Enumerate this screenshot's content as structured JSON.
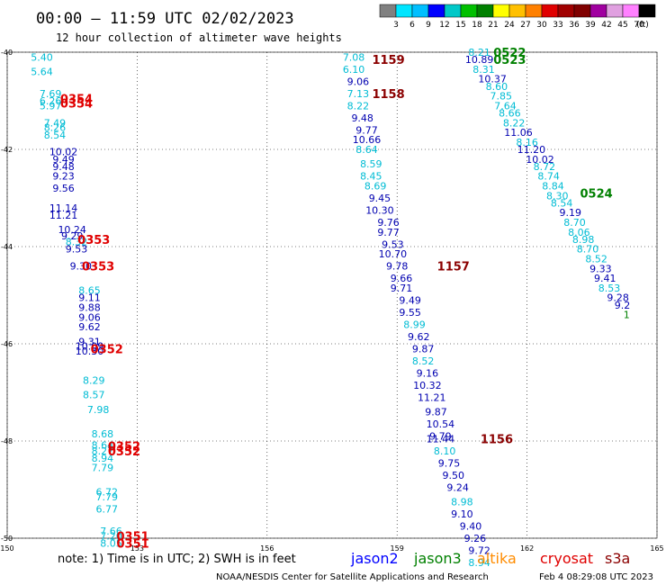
{
  "header": {
    "title": "00:00 – 11:59 UTC 02/02/2023",
    "subtitle": "12 hour collection of altimeter wave heights"
  },
  "colorbar": {
    "colors": [
      "#808080",
      "#00e5ff",
      "#00bfff",
      "#0000ff",
      "#00c8c8",
      "#00c000",
      "#008000",
      "#ffff00",
      "#ffc000",
      "#ff8000",
      "#e00000",
      "#a00000",
      "#800000",
      "#a000a0",
      "#e0a0e0",
      "#ff80ff",
      "#000000"
    ],
    "labels": [
      "3",
      "6",
      "9",
      "12",
      "15",
      "18",
      "21",
      "24",
      "27",
      "30",
      "33",
      "36",
      "39",
      "42",
      "45",
      "70"
    ],
    "unit": "(ft)"
  },
  "chart_data": {
    "type": "scatter",
    "title": "00:00 – 11:59 UTC 02/02/2023",
    "subtitle": "12 hour collection of altimeter wave heights",
    "xlim": [
      150,
      165
    ],
    "ylim": [
      -50,
      -40
    ],
    "x_ticks": [
      "150",
      "153",
      "156",
      "159",
      "162",
      "165"
    ],
    "y_ticks": [
      "-40",
      "-42",
      "-44",
      "-46",
      "-48",
      "-50"
    ],
    "grid": true,
    "colors": {
      "light": "#00bcd4",
      "dark": "#0000b0",
      "jason2": "#0000ff",
      "jason3": "#008000",
      "altika": "#ff8c00",
      "cryosat": "#e00000",
      "s3a": "#8b0000"
    },
    "tracks": [
      {
        "satellite": "cryosat",
        "points": [
          {
            "x": 150.8,
            "y": -40.1,
            "v": "5.40",
            "c": "light"
          },
          {
            "x": 150.8,
            "y": -40.4,
            "v": "5.64",
            "c": "light"
          },
          {
            "x": 151.0,
            "y": -40.85,
            "v": "7.69",
            "c": "light"
          },
          {
            "x": 151.0,
            "y": -41.0,
            "v": "6.26",
            "c": "light"
          },
          {
            "x": 151.0,
            "y": -41.1,
            "v": "5.97",
            "c": "light"
          },
          {
            "x": 151.1,
            "y": -41.45,
            "v": "7.49",
            "c": "light"
          },
          {
            "x": 151.1,
            "y": -41.55,
            "v": "8.26",
            "c": "light"
          },
          {
            "x": 151.1,
            "y": -41.7,
            "v": "8.54",
            "c": "light"
          },
          {
            "x": 151.3,
            "y": -42.05,
            "v": "10.02",
            "c": "dark"
          },
          {
            "x": 151.3,
            "y": -42.2,
            "v": "9.49",
            "c": "dark"
          },
          {
            "x": 151.3,
            "y": -42.35,
            "v": "9.48",
            "c": "dark"
          },
          {
            "x": 151.3,
            "y": -42.55,
            "v": "9.23",
            "c": "dark"
          },
          {
            "x": 151.3,
            "y": -42.8,
            "v": "9.56",
            "c": "dark"
          },
          {
            "x": 151.3,
            "y": -43.2,
            "v": "11.14",
            "c": "dark"
          },
          {
            "x": 151.3,
            "y": -43.35,
            "v": "11.21",
            "c": "dark"
          },
          {
            "x": 151.5,
            "y": -43.65,
            "v": "10.24",
            "c": "dark"
          },
          {
            "x": 151.5,
            "y": -43.78,
            "v": "9.29",
            "c": "dark"
          },
          {
            "x": 151.6,
            "y": -43.9,
            "v": "8.32",
            "c": "light"
          },
          {
            "x": 151.6,
            "y": -44.05,
            "v": "9.53",
            "c": "dark"
          },
          {
            "x": 151.7,
            "y": -44.4,
            "v": "9.30",
            "c": "dark"
          },
          {
            "x": 151.9,
            "y": -44.9,
            "v": "8.65",
            "c": "light"
          },
          {
            "x": 151.9,
            "y": -45.05,
            "v": "9.11",
            "c": "dark"
          },
          {
            "x": 151.9,
            "y": -45.25,
            "v": "9.88",
            "c": "dark"
          },
          {
            "x": 151.9,
            "y": -45.45,
            "v": "9.06",
            "c": "dark"
          },
          {
            "x": 151.9,
            "y": -45.65,
            "v": "9.62",
            "c": "dark"
          },
          {
            "x": 151.9,
            "y": -45.95,
            "v": "9.31",
            "c": "dark"
          },
          {
            "x": 151.9,
            "y": -46.05,
            "v": "10.09",
            "c": "dark"
          },
          {
            "x": 151.9,
            "y": -46.15,
            "v": "10.30",
            "c": "dark"
          },
          {
            "x": 152.0,
            "y": -46.75,
            "v": "8.29",
            "c": "light"
          },
          {
            "x": 152.0,
            "y": -47.05,
            "v": "8.57",
            "c": "light"
          },
          {
            "x": 152.1,
            "y": -47.35,
            "v": "7.98",
            "c": "light"
          },
          {
            "x": 152.2,
            "y": -47.85,
            "v": "8.68",
            "c": "light"
          },
          {
            "x": 152.2,
            "y": -48.08,
            "v": "8.64",
            "c": "light"
          },
          {
            "x": 152.2,
            "y": -48.2,
            "v": "8.27",
            "c": "light"
          },
          {
            "x": 152.2,
            "y": -48.35,
            "v": "8.94",
            "c": "light"
          },
          {
            "x": 152.2,
            "y": -48.55,
            "v": "7.79",
            "c": "light"
          },
          {
            "x": 152.3,
            "y": -49.05,
            "v": "6.72",
            "c": "light"
          },
          {
            "x": 152.3,
            "y": -49.15,
            "v": "7.79",
            "c": "light"
          },
          {
            "x": 152.3,
            "y": -49.4,
            "v": "6.77",
            "c": "light"
          },
          {
            "x": 152.4,
            "y": -49.85,
            "v": "7.66",
            "c": "light"
          },
          {
            "x": 152.4,
            "y": -49.95,
            "v": "7.20",
            "c": "light"
          },
          {
            "x": 152.4,
            "y": -50.1,
            "v": "8.05",
            "c": "light"
          }
        ],
        "times": [
          {
            "x": 151.6,
            "y": -40.95,
            "t": "0354"
          },
          {
            "x": 151.6,
            "y": -41.05,
            "t": "0354"
          },
          {
            "x": 152.0,
            "y": -43.85,
            "t": "0353"
          },
          {
            "x": 152.1,
            "y": -44.4,
            "t": "0353"
          },
          {
            "x": 152.3,
            "y": -46.1,
            "t": "0352"
          },
          {
            "x": 152.7,
            "y": -48.1,
            "t": "0352"
          },
          {
            "x": 152.7,
            "y": -48.2,
            "t": "0352"
          },
          {
            "x": 152.9,
            "y": -49.95,
            "t": "0351"
          },
          {
            "x": 152.9,
            "y": -50.1,
            "t": "0351"
          }
        ]
      },
      {
        "satellite": "s3a",
        "points": [
          {
            "x": 158.0,
            "y": -40.1,
            "v": "7.08",
            "c": "light"
          },
          {
            "x": 158.0,
            "y": -40.35,
            "v": "6.10",
            "c": "light"
          },
          {
            "x": 158.1,
            "y": -40.6,
            "v": "9.06",
            "c": "dark"
          },
          {
            "x": 158.1,
            "y": -40.85,
            "v": "7.13",
            "c": "light"
          },
          {
            "x": 158.1,
            "y": -41.1,
            "v": "8.22",
            "c": "light"
          },
          {
            "x": 158.2,
            "y": -41.35,
            "v": "9.48",
            "c": "dark"
          },
          {
            "x": 158.3,
            "y": -41.6,
            "v": "9.77",
            "c": "dark"
          },
          {
            "x": 158.3,
            "y": -41.8,
            "v": "10.66",
            "c": "dark"
          },
          {
            "x": 158.3,
            "y": -42.0,
            "v": "8.64",
            "c": "light"
          },
          {
            "x": 158.4,
            "y": -42.3,
            "v": "8.59",
            "c": "light"
          },
          {
            "x": 158.4,
            "y": -42.55,
            "v": "8.45",
            "c": "light"
          },
          {
            "x": 158.5,
            "y": -42.75,
            "v": "8.69",
            "c": "light"
          },
          {
            "x": 158.6,
            "y": -43.0,
            "v": "9.45",
            "c": "dark"
          },
          {
            "x": 158.6,
            "y": -43.25,
            "v": "10.30",
            "c": "dark"
          },
          {
            "x": 158.8,
            "y": -43.5,
            "v": "9.76",
            "c": "dark"
          },
          {
            "x": 158.8,
            "y": -43.7,
            "v": "9.77",
            "c": "dark"
          },
          {
            "x": 158.9,
            "y": -43.95,
            "v": "9.53",
            "c": "dark"
          },
          {
            "x": 158.9,
            "y": -44.15,
            "v": "10.70",
            "c": "dark"
          },
          {
            "x": 159.0,
            "y": -44.4,
            "v": "9.78",
            "c": "dark"
          },
          {
            "x": 159.1,
            "y": -44.65,
            "v": "9.66",
            "c": "dark"
          },
          {
            "x": 159.1,
            "y": -44.85,
            "v": "9.71",
            "c": "dark"
          },
          {
            "x": 159.3,
            "y": -45.1,
            "v": "9.49",
            "c": "dark"
          },
          {
            "x": 159.3,
            "y": -45.35,
            "v": "9.55",
            "c": "dark"
          },
          {
            "x": 159.4,
            "y": -45.6,
            "v": "8.99",
            "c": "light"
          },
          {
            "x": 159.5,
            "y": -45.85,
            "v": "9.62",
            "c": "dark"
          },
          {
            "x": 159.6,
            "y": -46.1,
            "v": "9.87",
            "c": "dark"
          },
          {
            "x": 159.6,
            "y": -46.35,
            "v": "8.52",
            "c": "light"
          },
          {
            "x": 159.7,
            "y": -46.6,
            "v": "9.16",
            "c": "dark"
          },
          {
            "x": 159.7,
            "y": -46.85,
            "v": "10.32",
            "c": "dark"
          },
          {
            "x": 159.8,
            "y": -47.1,
            "v": "11.21",
            "c": "dark"
          },
          {
            "x": 159.9,
            "y": -47.4,
            "v": "9.87",
            "c": "dark"
          },
          {
            "x": 160.0,
            "y": -47.65,
            "v": "10.54",
            "c": "dark"
          },
          {
            "x": 160.0,
            "y": -47.9,
            "v": "9.79",
            "c": "dark"
          },
          {
            "x": 160.0,
            "y": -47.95,
            "v": "11.44",
            "c": "dark"
          },
          {
            "x": 160.1,
            "y": -48.2,
            "v": "8.10",
            "c": "light"
          },
          {
            "x": 160.2,
            "y": -48.45,
            "v": "9.75",
            "c": "dark"
          },
          {
            "x": 160.3,
            "y": -48.7,
            "v": "9.50",
            "c": "dark"
          },
          {
            "x": 160.4,
            "y": -48.95,
            "v": "9.24",
            "c": "dark"
          },
          {
            "x": 160.5,
            "y": -49.25,
            "v": "8.98",
            "c": "light"
          },
          {
            "x": 160.5,
            "y": -49.5,
            "v": "9.10",
            "c": "dark"
          },
          {
            "x": 160.7,
            "y": -49.75,
            "v": "9.40",
            "c": "dark"
          },
          {
            "x": 160.8,
            "y": -50.0,
            "v": "9.26",
            "c": "dark"
          },
          {
            "x": 160.9,
            "y": -50.25,
            "v": "9.72",
            "c": "dark"
          },
          {
            "x": 160.9,
            "y": -50.5,
            "v": "8.94",
            "c": "light"
          }
        ],
        "times": [
          {
            "x": 158.8,
            "y": -40.15,
            "t": "1159"
          },
          {
            "x": 158.8,
            "y": -40.85,
            "t": "1158"
          },
          {
            "x": 160.3,
            "y": -44.4,
            "t": "1157"
          },
          {
            "x": 161.3,
            "y": -47.95,
            "t": "1156"
          }
        ]
      },
      {
        "satellite": "jason3",
        "points": [
          {
            "x": 160.9,
            "y": -40.0,
            "v": "8.21",
            "c": "light"
          },
          {
            "x": 160.9,
            "y": -40.15,
            "v": "10.89",
            "c": "dark"
          },
          {
            "x": 161.0,
            "y": -40.35,
            "v": "8.31",
            "c": "light"
          },
          {
            "x": 161.2,
            "y": -40.55,
            "v": "10.37",
            "c": "dark"
          },
          {
            "x": 161.3,
            "y": -40.7,
            "v": "8.60",
            "c": "light"
          },
          {
            "x": 161.4,
            "y": -40.9,
            "v": "7.85",
            "c": "light"
          },
          {
            "x": 161.5,
            "y": -41.1,
            "v": "7.64",
            "c": "light"
          },
          {
            "x": 161.6,
            "y": -41.25,
            "v": "8.66",
            "c": "light"
          },
          {
            "x": 161.7,
            "y": -41.45,
            "v": "8.22",
            "c": "light"
          },
          {
            "x": 161.8,
            "y": -41.65,
            "v": "11.06",
            "c": "dark"
          },
          {
            "x": 162.0,
            "y": -41.85,
            "v": "8.16",
            "c": "light"
          },
          {
            "x": 162.1,
            "y": -42.0,
            "v": "11.20",
            "c": "dark"
          },
          {
            "x": 162.3,
            "y": -42.2,
            "v": "10.02",
            "c": "dark"
          },
          {
            "x": 162.4,
            "y": -42.35,
            "v": "8.72",
            "c": "light"
          },
          {
            "x": 162.5,
            "y": -42.55,
            "v": "8.74",
            "c": "light"
          },
          {
            "x": 162.6,
            "y": -42.75,
            "v": "8.84",
            "c": "light"
          },
          {
            "x": 162.7,
            "y": -42.95,
            "v": "8.30",
            "c": "light"
          },
          {
            "x": 162.8,
            "y": -43.1,
            "v": "8.54",
            "c": "light"
          },
          {
            "x": 163.0,
            "y": -43.3,
            "v": "9.19",
            "c": "dark"
          },
          {
            "x": 163.1,
            "y": -43.5,
            "v": "8.70",
            "c": "light"
          },
          {
            "x": 163.2,
            "y": -43.7,
            "v": "8.06",
            "c": "light"
          },
          {
            "x": 163.3,
            "y": -43.85,
            "v": "8.98",
            "c": "light"
          },
          {
            "x": 163.4,
            "y": -44.05,
            "v": "8.70",
            "c": "light"
          },
          {
            "x": 163.6,
            "y": -44.25,
            "v": "8.52",
            "c": "light"
          },
          {
            "x": 163.7,
            "y": -44.45,
            "v": "9.33",
            "c": "dark"
          },
          {
            "x": 163.8,
            "y": -44.65,
            "v": "9.41",
            "c": "dark"
          },
          {
            "x": 163.9,
            "y": -44.85,
            "v": "8.53",
            "c": "light"
          },
          {
            "x": 164.1,
            "y": -45.05,
            "v": "9.28",
            "c": "dark"
          },
          {
            "x": 164.2,
            "y": -45.2,
            "v": "9.2",
            "c": "dark"
          },
          {
            "x": 164.3,
            "y": -45.4,
            "v": "1",
            "c": "jason3"
          }
        ],
        "times": [
          {
            "x": 161.6,
            "y": -40.0,
            "t": "0522"
          },
          {
            "x": 161.6,
            "y": -40.15,
            "t": "0523"
          },
          {
            "x": 163.6,
            "y": -42.9,
            "t": "0524"
          }
        ]
      }
    ]
  },
  "footer": {
    "note": "note:  1) Time is in UTC;  2) SWH is in feet",
    "legend": [
      {
        "name": "jason2",
        "color": "#0000ff"
      },
      {
        "name": "jason3",
        "color": "#008000"
      },
      {
        "name": "altika",
        "color": "#ff8c00"
      },
      {
        "name": "cryosat",
        "color": "#e00000"
      },
      {
        "name": "s3a",
        "color": "#8b0000"
      }
    ],
    "credit": "NOAA/NESDIS Center for Satellite Applications and Research",
    "timestamp": "Feb  4 08:29:08 UTC 2023"
  }
}
